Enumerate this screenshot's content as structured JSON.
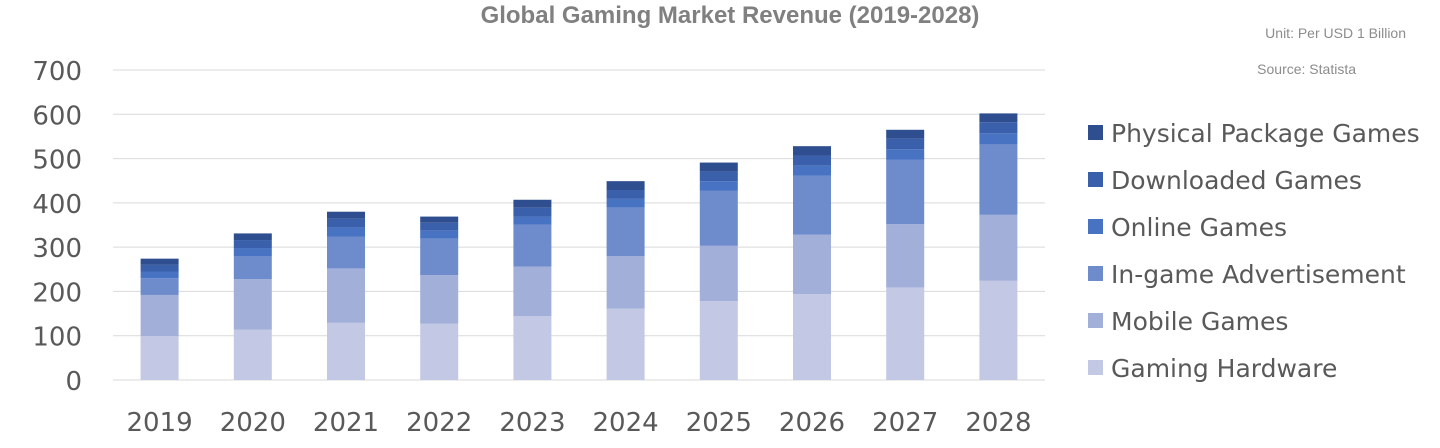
{
  "chart_data": {
    "type": "bar",
    "stacked": true,
    "title": "Global Gaming Market Revenue (2019-2028)",
    "unit_note": "Unit: Per USD 1 Billion",
    "source_note": "Source: Statista",
    "categories": [
      "2019",
      "2020",
      "2021",
      "2022",
      "2023",
      "2024",
      "2025",
      "2026",
      "2027",
      "2028"
    ],
    "ylim": [
      0,
      700
    ],
    "yticks": [
      "0",
      "100",
      "200",
      "300",
      "400",
      "500",
      "600",
      "700"
    ],
    "grid": true,
    "legend_position": "right",
    "series": [
      {
        "name": "Gaming Hardware",
        "color": "#c3c9e5",
        "values": [
          99,
          114,
          129,
          127,
          144,
          161,
          178,
          194,
          209,
          224
        ]
      },
      {
        "name": "Mobile Games",
        "color": "#a2afd9",
        "values": [
          93,
          114,
          123,
          110,
          112,
          119,
          125,
          134,
          143,
          149
        ]
      },
      {
        "name": "In-game Advertisement",
        "color": "#6e8bcc",
        "values": [
          38,
          52,
          72,
          82,
          95,
          109,
          124,
          133,
          145,
          159
        ]
      },
      {
        "name": "Online Games",
        "color": "#4873c2",
        "values": [
          15,
          18,
          20,
          18,
          18,
          20,
          22,
          23,
          24,
          25
        ]
      },
      {
        "name": "Downloaded Games",
        "color": "#3a5fab",
        "values": [
          15,
          18,
          20,
          18,
          20,
          20,
          22,
          23,
          24,
          25
        ]
      },
      {
        "name": "Physical Package Games",
        "color": "#2f4e8f",
        "values": [
          14,
          15,
          16,
          14,
          18,
          20,
          20,
          21,
          20,
          20
        ]
      }
    ]
  }
}
